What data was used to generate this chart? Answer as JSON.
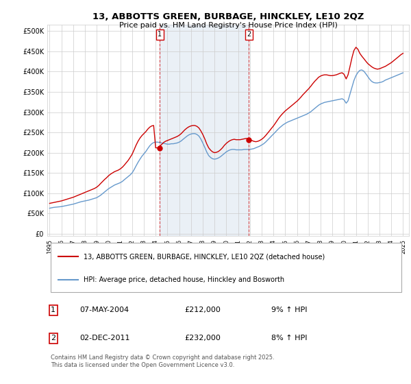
{
  "title": "13, ABBOTTS GREEN, BURBAGE, HINCKLEY, LE10 2QZ",
  "subtitle": "Price paid vs. HM Land Registry's House Price Index (HPI)",
  "legend_line1": "13, ABBOTTS GREEN, BURBAGE, HINCKLEY, LE10 2QZ (detached house)",
  "legend_line2": "HPI: Average price, detached house, Hinckley and Bosworth",
  "annotation1_date": "07-MAY-2004",
  "annotation1_price": "£212,000",
  "annotation1_hpi": "9% ↑ HPI",
  "annotation1_year": 2004.35,
  "annotation1_value": 212000,
  "annotation2_date": "02-DEC-2011",
  "annotation2_price": "£232,000",
  "annotation2_hpi": "8% ↑ HPI",
  "annotation2_year": 2011.92,
  "annotation2_value": 232000,
  "yticks": [
    0,
    50000,
    100000,
    150000,
    200000,
    250000,
    300000,
    350000,
    400000,
    450000,
    500000
  ],
  "ytick_labels": [
    "£0",
    "£50K",
    "£100K",
    "£150K",
    "£200K",
    "£250K",
    "£300K",
    "£350K",
    "£400K",
    "£450K",
    "£500K"
  ],
  "ylim": [
    -5000,
    515000
  ],
  "xlim_start": 1994.8,
  "xlim_end": 2025.5,
  "red_color": "#cc0000",
  "blue_color": "#6699cc",
  "bg_color": "#ffffff",
  "shade_color": "#dce6f1",
  "grid_color": "#cccccc",
  "footer_text": "Contains HM Land Registry data © Crown copyright and database right 2025.\nThis data is licensed under the Open Government Licence v3.0.",
  "hpi_years": [
    1995.0,
    1995.17,
    1995.33,
    1995.5,
    1995.67,
    1995.83,
    1996.0,
    1996.17,
    1996.33,
    1996.5,
    1996.67,
    1996.83,
    1997.0,
    1997.17,
    1997.33,
    1997.5,
    1997.67,
    1997.83,
    1998.0,
    1998.17,
    1998.33,
    1998.5,
    1998.67,
    1998.83,
    1999.0,
    1999.17,
    1999.33,
    1999.5,
    1999.67,
    1999.83,
    2000.0,
    2000.17,
    2000.33,
    2000.5,
    2000.67,
    2000.83,
    2001.0,
    2001.17,
    2001.33,
    2001.5,
    2001.67,
    2001.83,
    2002.0,
    2002.17,
    2002.33,
    2002.5,
    2002.67,
    2002.83,
    2003.0,
    2003.17,
    2003.33,
    2003.5,
    2003.67,
    2003.83,
    2004.0,
    2004.17,
    2004.33,
    2004.5,
    2004.67,
    2004.83,
    2005.0,
    2005.17,
    2005.33,
    2005.5,
    2005.67,
    2005.83,
    2006.0,
    2006.17,
    2006.33,
    2006.5,
    2006.67,
    2006.83,
    2007.0,
    2007.17,
    2007.33,
    2007.5,
    2007.67,
    2007.83,
    2008.0,
    2008.17,
    2008.33,
    2008.5,
    2008.67,
    2008.83,
    2009.0,
    2009.17,
    2009.33,
    2009.5,
    2009.67,
    2009.83,
    2010.0,
    2010.17,
    2010.33,
    2010.5,
    2010.67,
    2010.83,
    2011.0,
    2011.17,
    2011.33,
    2011.5,
    2011.67,
    2011.83,
    2012.0,
    2012.17,
    2012.33,
    2012.5,
    2012.67,
    2012.83,
    2013.0,
    2013.17,
    2013.33,
    2013.5,
    2013.67,
    2013.83,
    2014.0,
    2014.17,
    2014.33,
    2014.5,
    2014.67,
    2014.83,
    2015.0,
    2015.17,
    2015.33,
    2015.5,
    2015.67,
    2015.83,
    2016.0,
    2016.17,
    2016.33,
    2016.5,
    2016.67,
    2016.83,
    2017.0,
    2017.17,
    2017.33,
    2017.5,
    2017.67,
    2017.83,
    2018.0,
    2018.17,
    2018.33,
    2018.5,
    2018.67,
    2018.83,
    2019.0,
    2019.17,
    2019.33,
    2019.5,
    2019.67,
    2019.83,
    2020.0,
    2020.17,
    2020.33,
    2020.5,
    2020.67,
    2020.83,
    2021.0,
    2021.17,
    2021.33,
    2021.5,
    2021.67,
    2021.83,
    2022.0,
    2022.17,
    2022.33,
    2022.5,
    2022.67,
    2022.83,
    2023.0,
    2023.17,
    2023.33,
    2023.5,
    2023.67,
    2023.83,
    2024.0,
    2024.17,
    2024.33,
    2024.5,
    2024.67,
    2024.83,
    2025.0
  ],
  "hpi_values": [
    63000,
    64000,
    65000,
    65500,
    66000,
    66500,
    67000,
    68000,
    69000,
    70000,
    71000,
    72000,
    73000,
    74500,
    76000,
    77500,
    79000,
    80000,
    81000,
    82000,
    83000,
    84500,
    86000,
    87500,
    89000,
    92000,
    95000,
    99000,
    103000,
    107000,
    111000,
    114000,
    117000,
    120000,
    122000,
    124000,
    126000,
    129000,
    133000,
    137000,
    141000,
    145000,
    150000,
    158000,
    167000,
    176000,
    184000,
    191000,
    197000,
    203000,
    210000,
    217000,
    222000,
    225000,
    226000,
    226000,
    225000,
    224000,
    223000,
    222000,
    221000,
    221000,
    222000,
    222000,
    223000,
    224000,
    226000,
    229000,
    233000,
    237000,
    241000,
    244000,
    246000,
    247000,
    247000,
    245000,
    241000,
    234000,
    224000,
    213000,
    202000,
    193000,
    188000,
    185000,
    184000,
    185000,
    187000,
    190000,
    194000,
    198000,
    202000,
    205000,
    207000,
    208000,
    208000,
    207000,
    207000,
    207000,
    207000,
    208000,
    208000,
    208000,
    208000,
    209000,
    210000,
    212000,
    214000,
    216000,
    219000,
    222000,
    226000,
    231000,
    236000,
    241000,
    246000,
    251000,
    256000,
    261000,
    265000,
    269000,
    272000,
    275000,
    277000,
    279000,
    281000,
    283000,
    285000,
    287000,
    289000,
    291000,
    293000,
    295000,
    298000,
    301000,
    305000,
    309000,
    313000,
    317000,
    320000,
    322000,
    324000,
    325000,
    326000,
    327000,
    328000,
    329000,
    330000,
    331000,
    332000,
    333000,
    330000,
    322000,
    328000,
    345000,
    362000,
    378000,
    390000,
    398000,
    403000,
    404000,
    401000,
    395000,
    388000,
    381000,
    376000,
    373000,
    372000,
    372000,
    373000,
    374000,
    376000,
    379000,
    381000,
    383000,
    385000,
    387000,
    389000,
    391000,
    393000,
    395000,
    397000
  ],
  "price_years": [
    1995.0,
    1995.17,
    1995.33,
    1995.5,
    1995.67,
    1995.83,
    1996.0,
    1996.17,
    1996.33,
    1996.5,
    1996.67,
    1996.83,
    1997.0,
    1997.17,
    1997.33,
    1997.5,
    1997.67,
    1997.83,
    1998.0,
    1998.17,
    1998.33,
    1998.5,
    1998.67,
    1998.83,
    1999.0,
    1999.17,
    1999.33,
    1999.5,
    1999.67,
    1999.83,
    2000.0,
    2000.17,
    2000.33,
    2000.5,
    2000.67,
    2000.83,
    2001.0,
    2001.17,
    2001.33,
    2001.5,
    2001.67,
    2001.83,
    2002.0,
    2002.17,
    2002.33,
    2002.5,
    2002.67,
    2002.83,
    2003.0,
    2003.17,
    2003.33,
    2003.5,
    2003.67,
    2003.83,
    2004.0,
    2004.17,
    2004.33,
    2004.5,
    2004.67,
    2004.83,
    2005.0,
    2005.17,
    2005.33,
    2005.5,
    2005.67,
    2005.83,
    2006.0,
    2006.17,
    2006.33,
    2006.5,
    2006.67,
    2006.83,
    2007.0,
    2007.17,
    2007.33,
    2007.5,
    2007.67,
    2007.83,
    2008.0,
    2008.17,
    2008.33,
    2008.5,
    2008.67,
    2008.83,
    2009.0,
    2009.17,
    2009.33,
    2009.5,
    2009.67,
    2009.83,
    2010.0,
    2010.17,
    2010.33,
    2010.5,
    2010.67,
    2010.83,
    2011.0,
    2011.17,
    2011.33,
    2011.5,
    2011.67,
    2011.83,
    2012.0,
    2012.17,
    2012.33,
    2012.5,
    2012.67,
    2012.83,
    2013.0,
    2013.17,
    2013.33,
    2013.5,
    2013.67,
    2013.83,
    2014.0,
    2014.17,
    2014.33,
    2014.5,
    2014.67,
    2014.83,
    2015.0,
    2015.17,
    2015.33,
    2015.5,
    2015.67,
    2015.83,
    2016.0,
    2016.17,
    2016.33,
    2016.5,
    2016.67,
    2016.83,
    2017.0,
    2017.17,
    2017.33,
    2017.5,
    2017.67,
    2017.83,
    2018.0,
    2018.17,
    2018.33,
    2018.5,
    2018.67,
    2018.83,
    2019.0,
    2019.17,
    2019.33,
    2019.5,
    2019.67,
    2019.83,
    2020.0,
    2020.17,
    2020.33,
    2020.5,
    2020.67,
    2020.83,
    2021.0,
    2021.17,
    2021.33,
    2021.5,
    2021.67,
    2021.83,
    2022.0,
    2022.17,
    2022.33,
    2022.5,
    2022.67,
    2022.83,
    2023.0,
    2023.17,
    2023.33,
    2023.5,
    2023.67,
    2023.83,
    2024.0,
    2024.17,
    2024.33,
    2024.5,
    2024.67,
    2024.83,
    2025.0
  ],
  "price_values": [
    75000,
    76000,
    77000,
    78000,
    79000,
    80000,
    81000,
    82500,
    84000,
    85500,
    87000,
    88500,
    90000,
    92000,
    94000,
    96000,
    98000,
    100000,
    102000,
    104000,
    106000,
    108000,
    110000,
    112000,
    115000,
    119000,
    124000,
    129000,
    134000,
    138000,
    143000,
    147000,
    150000,
    153000,
    155000,
    157000,
    160000,
    164000,
    169000,
    175000,
    181000,
    188000,
    196000,
    207000,
    218000,
    228000,
    236000,
    242000,
    247000,
    252000,
    258000,
    263000,
    266000,
    267000,
    212000,
    212000,
    215000,
    220000,
    225000,
    228000,
    230000,
    232000,
    234000,
    236000,
    238000,
    240000,
    243000,
    247000,
    252000,
    257000,
    261000,
    264000,
    266000,
    267000,
    267000,
    265000,
    261000,
    254000,
    245000,
    234000,
    222000,
    212000,
    206000,
    202000,
    200000,
    201000,
    203000,
    207000,
    212000,
    218000,
    223000,
    227000,
    230000,
    232000,
    233000,
    232000,
    232000,
    232000,
    233000,
    234000,
    235000,
    235000,
    232000,
    230000,
    228000,
    227000,
    228000,
    230000,
    233000,
    237000,
    242000,
    248000,
    254000,
    260000,
    266000,
    273000,
    280000,
    287000,
    293000,
    298000,
    303000,
    307000,
    311000,
    315000,
    319000,
    323000,
    327000,
    332000,
    337000,
    343000,
    348000,
    353000,
    358000,
    364000,
    370000,
    376000,
    381000,
    386000,
    389000,
    391000,
    392000,
    392000,
    391000,
    390000,
    390000,
    391000,
    392000,
    394000,
    396000,
    397000,
    393000,
    382000,
    392000,
    413000,
    435000,
    452000,
    460000,
    455000,
    445000,
    438000,
    432000,
    426000,
    420000,
    416000,
    412000,
    409000,
    407000,
    406000,
    407000,
    409000,
    411000,
    413000,
    416000,
    419000,
    422000,
    426000,
    430000,
    434000,
    438000,
    442000,
    445000
  ]
}
